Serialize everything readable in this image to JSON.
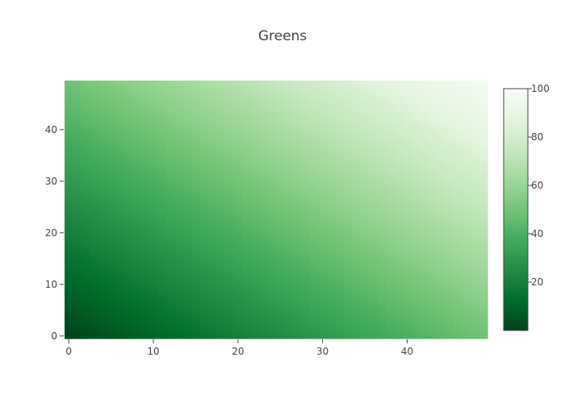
{
  "chart_data": {
    "type": "heatmap",
    "title": "Greens",
    "colorscale": "Greens",
    "colors": [
      "#00441b",
      "#006d2c",
      "#238b45",
      "#41ab5d",
      "#74c476",
      "#a1d99b",
      "#c7e9c0",
      "#e5f5e0",
      "#f7fcf5"
    ],
    "x": {
      "min": 0,
      "max": 49,
      "count": 50,
      "ticks": [
        0,
        10,
        20,
        30,
        40
      ],
      "label": ""
    },
    "y": {
      "min": 0,
      "max": 49,
      "count": 50,
      "ticks": [
        0,
        10,
        20,
        30,
        40
      ],
      "label": ""
    },
    "z": {
      "min": 0,
      "max": 100,
      "formula": "z = x + y",
      "ticks": [
        20,
        40,
        60,
        80,
        100
      ]
    },
    "colorbar": {
      "position": "right"
    },
    "grid": false
  }
}
